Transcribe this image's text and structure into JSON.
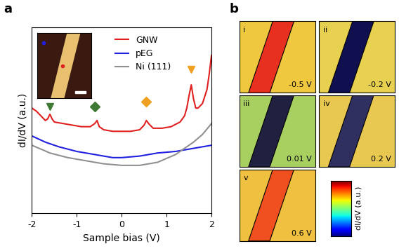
{
  "panel_labels": [
    "a",
    "b"
  ],
  "chart_data": {
    "type": "line",
    "x_label": "Sample bias (V)",
    "y_label": "dI/dV (a.u.)",
    "xlim": [
      -2,
      2
    ],
    "xticks": [
      -2,
      -1,
      0,
      1,
      2
    ],
    "ylim": [
      0,
      12
    ],
    "yticks": [],
    "tick_labels": "x",
    "legend": "upper center",
    "series": [
      {
        "name": "GNW",
        "color": "#e02020",
        "x": [
          -2,
          -1.9,
          -1.8,
          -1.7,
          -1.65,
          -1.6,
          -1.55,
          -1.5,
          -1.3,
          -1.1,
          -0.9,
          -0.7,
          -0.6,
          -0.55,
          -0.5,
          -0.4,
          -0.2,
          0,
          0.2,
          0.4,
          0.5,
          0.55,
          0.6,
          0.7,
          0.9,
          1.1,
          1.3,
          1.4,
          1.45,
          1.5,
          1.55,
          1.6,
          1.65,
          1.7,
          1.8,
          1.9,
          1.95,
          2.0
        ],
        "values": [
          6.8,
          6.6,
          6.3,
          6.0,
          6.1,
          6.4,
          6.1,
          5.9,
          5.8,
          5.7,
          5.6,
          5.6,
          5.8,
          6.0,
          5.6,
          5.4,
          5.3,
          5.3,
          5.3,
          5.4,
          5.7,
          6.0,
          5.8,
          5.5,
          5.5,
          5.6,
          5.9,
          6.3,
          6.8,
          7.6,
          8.3,
          7.4,
          6.8,
          6.8,
          7.1,
          8.0,
          9.0,
          10.2
        ]
      },
      {
        "name": "pEG",
        "color": "#2020e0",
        "x": [
          -2,
          -1.7,
          -1.4,
          -1,
          -0.6,
          -0.2,
          0,
          0.4,
          0.8,
          1.2,
          1.6,
          2
        ],
        "values": [
          5.0,
          4.6,
          4.3,
          4.0,
          3.8,
          3.6,
          3.6,
          3.7,
          3.9,
          4.0,
          4.2,
          4.4
        ]
      },
      {
        "name": "Ni (111)",
        "color": "#909090",
        "x": [
          -2,
          -1.6,
          -1.2,
          -0.8,
          -0.4,
          0,
          0.4,
          0.8,
          1.2,
          1.6,
          1.8,
          2
        ],
        "values": [
          4.4,
          3.9,
          3.6,
          3.4,
          3.2,
          3.1,
          3.1,
          3.3,
          3.8,
          4.6,
          5.1,
          5.8
        ]
      }
    ],
    "markers": [
      {
        "x": -1.6,
        "y": 6.9,
        "marker": "triangle_down",
        "color": "#3f7a35"
      },
      {
        "x": -0.6,
        "y": 6.9,
        "marker": "diamond",
        "color": "#3f7a35"
      },
      {
        "x": 0.55,
        "y": 7.2,
        "marker": "diamond",
        "color": "#f0a020"
      },
      {
        "x": 1.55,
        "y": 9.3,
        "marker": "triangle_down",
        "color": "#f0a020"
      }
    ]
  },
  "maps": {
    "panels": [
      {
        "label": "i",
        "bias": "-0.5 V",
        "colors": [
          "#f0c840",
          "#e83020"
        ]
      },
      {
        "label": "ii",
        "bias": "-0.2 V",
        "colors": [
          "#e8d050",
          "#101050"
        ]
      },
      {
        "label": "iii",
        "bias": "0.01 V",
        "colors": [
          "#a8d060",
          "#202040"
        ]
      },
      {
        "label": "iv",
        "bias": "0.2 V",
        "colors": [
          "#e8c850",
          "#303060"
        ]
      },
      {
        "label": "v",
        "bias": "0.6 V",
        "colors": [
          "#f0c040",
          "#f05020"
        ]
      }
    ],
    "colorbar_label": "dI/dV (a.u.)"
  }
}
